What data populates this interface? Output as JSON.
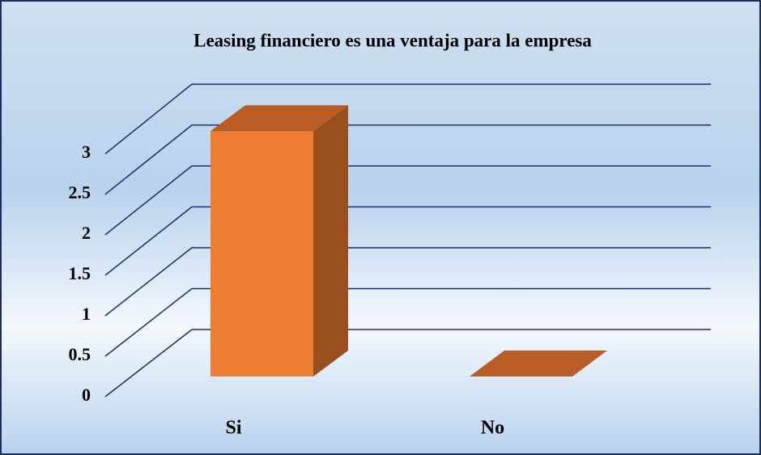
{
  "chart_data": {
    "type": "bar3d",
    "title": "Leasing financiero  es una ventaja para la empresa",
    "categories": [
      "Si",
      "No"
    ],
    "values": [
      3,
      0
    ],
    "color": "#ed7d31",
    "ylim": [
      0,
      3
    ],
    "yticks": [
      0,
      0.5,
      1,
      1.5,
      2,
      2.5,
      3
    ],
    "grid": true
  }
}
